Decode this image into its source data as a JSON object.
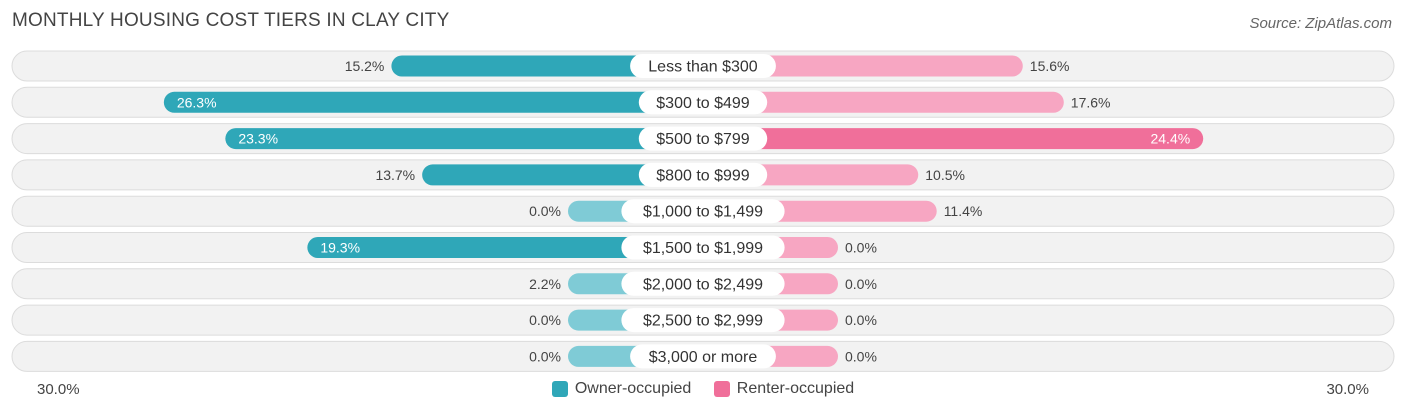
{
  "title": "MONTHLY HOUSING COST TIERS IN CLAY CITY",
  "source": "Source: ZipAtlas.com",
  "axis": {
    "left_label": "30.0%",
    "right_label": "30.0%"
  },
  "legend": [
    {
      "label": "Owner-occupied",
      "color": "#2fa7b8"
    },
    {
      "label": "Renter-occupied",
      "color": "#f06f9a"
    }
  ],
  "chart_data": {
    "type": "bar",
    "orientation": "horizontal-diverging",
    "title": "MONTHLY HOUSING COST TIERS IN CLAY CITY",
    "categories": [
      "Less than $300",
      "$300 to $499",
      "$500 to $799",
      "$800 to $999",
      "$1,000 to $1,499",
      "$1,500 to $1,999",
      "$2,000 to $2,499",
      "$2,500 to $2,999",
      "$3,000 or more"
    ],
    "series": [
      {
        "name": "Owner-occupied",
        "values": [
          15.2,
          26.3,
          23.3,
          13.7,
          0.0,
          19.3,
          2.2,
          0.0,
          0.0
        ],
        "labels": [
          "15.2%",
          "26.3%",
          "23.3%",
          "13.7%",
          "0.0%",
          "19.3%",
          "2.2%",
          "0.0%",
          "0.0%"
        ]
      },
      {
        "name": "Renter-occupied",
        "values": [
          15.6,
          17.6,
          24.4,
          10.5,
          11.4,
          0.0,
          0.0,
          0.0,
          0.0
        ],
        "labels": [
          "15.6%",
          "17.6%",
          "24.4%",
          "10.5%",
          "11.4%",
          "0.0%",
          "0.0%",
          "0.0%",
          "0.0%"
        ]
      }
    ],
    "xlim": [
      -30,
      30
    ],
    "colors": {
      "owner": "#2fa7b8",
      "owner_light": "#7fcbd6",
      "renter": "#f06f9a",
      "renter_light": "#f7a6c2"
    },
    "legend_position": "bottom-center"
  }
}
